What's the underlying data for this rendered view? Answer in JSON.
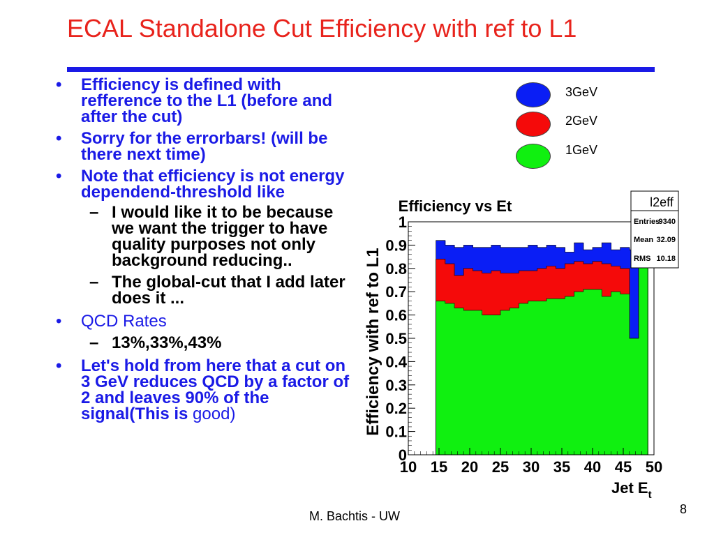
{
  "slide": {
    "title": "ECAL Standalone Cut Efficiency with ref to L1",
    "footer": "M. Bachtis - UW",
    "page_number": "8",
    "accent_color": "#1a1ae6",
    "title_color": "#e8231c"
  },
  "bullets": {
    "b1": "Efficiency is defined with refference to the L1 (before and after the cut)",
    "b2": "Sorry for the errorbars! (will be there next time)",
    "b3": "Note that efficiency is not energy dependend-threshold like",
    "b3_sub1": "I would like it to be because we want the trigger to have quality purposes not only background reducing..",
    "b3_sub2": "The global-cut that I add later does it ...",
    "b4": "QCD Rates",
    "b4_sub1": "13%,33%,43%",
    "b5_bold": "Let's hold from here that a cut on 3 GeV reduces QCD by a factor of 2 and leaves 90% of the signal(This is",
    "b5_plain": "good)",
    "bullet_glyph": "•",
    "dash_glyph": "–"
  },
  "legend": [
    {
      "label": "3GeV",
      "color": "#0a1ef5"
    },
    {
      "label": "2GeV",
      "color": "#f50a0a"
    },
    {
      "label": "1GeV",
      "color": "#10f010"
    }
  ],
  "stats_box": {
    "name": "l2eff",
    "rows": [
      {
        "label": "Entries",
        "value": "9340"
      },
      {
        "label": "Mean",
        "value": "32.09"
      },
      {
        "label": "RMS",
        "value": "10.18"
      }
    ]
  },
  "chart_data": {
    "type": "bar",
    "title": "Efficiency vs Et",
    "xlabel": "Jet E",
    "xlabel_sub": "t",
    "ylabel": "Efficiency with ref to L1",
    "xlim": [
      10,
      50
    ],
    "ylim": [
      0,
      1
    ],
    "xticks": [
      "10",
      "15",
      "20",
      "25",
      "30",
      "35",
      "40",
      "45",
      "50"
    ],
    "yticks": [
      "0",
      "0.1",
      "0.2",
      "0.3",
      "0.4",
      "0.5",
      "0.6",
      "0.7",
      "0.8",
      "0.9",
      "1"
    ],
    "bin_edges": [
      14.5,
      16,
      17.5,
      19,
      20.5,
      22,
      23.5,
      25,
      26.5,
      28,
      29.5,
      31,
      32.5,
      34,
      35.5,
      37,
      38.5,
      40,
      41.5,
      43,
      44.5,
      46,
      47.5,
      49
    ],
    "series": [
      {
        "name": "3GeV",
        "color": "#0a1ef5",
        "values": [
          0.92,
          0.9,
          0.89,
          0.9,
          0.89,
          0.89,
          0.9,
          0.89,
          0.89,
          0.89,
          0.9,
          0.89,
          0.9,
          0.89,
          0.87,
          0.91,
          0.88,
          0.89,
          0.91,
          0.88,
          0.89,
          0.88,
          0.99
        ]
      },
      {
        "name": "2GeV",
        "color": "#f50a0a",
        "values": [
          0.84,
          0.82,
          0.77,
          0.8,
          0.79,
          0.78,
          0.79,
          0.78,
          0.78,
          0.79,
          0.79,
          0.8,
          0.81,
          0.8,
          0.82,
          0.83,
          0.82,
          0.83,
          0.82,
          0.81,
          0.8,
          0.5,
          0.99
        ]
      },
      {
        "name": "1GeV",
        "color": "#10f010",
        "values": [
          0.66,
          0.65,
          0.63,
          0.62,
          0.62,
          0.6,
          0.6,
          0.62,
          0.63,
          0.65,
          0.66,
          0.66,
          0.67,
          0.67,
          0.68,
          0.7,
          0.71,
          0.71,
          0.68,
          0.7,
          0.69,
          0.5,
          0.96
        ]
      }
    ]
  }
}
